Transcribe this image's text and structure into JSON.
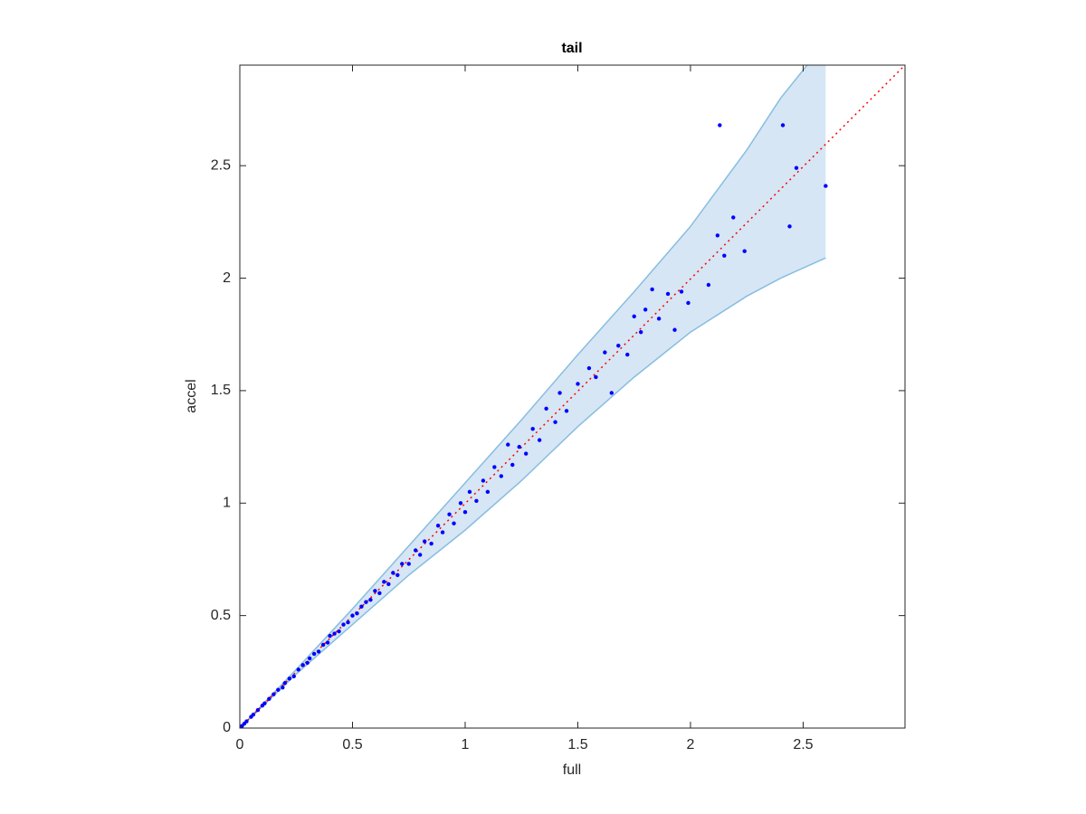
{
  "chart_data": {
    "type": "scatter",
    "title": "tail",
    "x_label": "full",
    "y_label": "accel",
    "xlim": [
      0,
      2.952
    ],
    "ylim": [
      0,
      2.947
    ],
    "xticks": [
      0,
      0.5,
      1,
      1.5,
      2,
      2.5
    ],
    "yticks": [
      0,
      0.5,
      1,
      1.5,
      2,
      2.5
    ],
    "box": true,
    "series": [
      {
        "color": "#0000ff",
        "x": [
          0.01,
          0.02,
          0.03,
          0.05,
          0.06,
          0.08,
          0.1,
          0.11,
          0.13,
          0.15,
          0.17,
          0.19,
          0.2,
          0.22,
          0.24,
          0.26,
          0.28,
          0.3,
          0.31,
          0.33,
          0.35,
          0.37,
          0.39,
          0.4,
          0.42,
          0.44,
          0.46,
          0.48,
          0.5,
          0.52,
          0.54,
          0.56,
          0.58,
          0.6,
          0.62,
          0.64,
          0.66,
          0.68,
          0.7,
          0.72,
          0.75,
          0.78,
          0.8,
          0.82,
          0.85,
          0.88,
          0.9,
          0.93,
          0.95,
          0.98,
          1.0,
          1.02,
          1.05,
          1.08,
          1.1,
          1.13,
          1.16,
          1.19,
          1.21,
          1.24,
          1.27,
          1.3,
          1.33,
          1.36,
          1.4,
          1.42,
          1.45,
          1.5,
          1.55,
          1.58,
          1.62,
          1.65,
          1.68,
          1.72,
          1.75,
          1.78,
          1.8,
          1.83,
          1.86,
          1.9,
          1.93,
          1.96,
          1.99,
          2.08,
          2.12,
          2.13,
          2.15,
          2.19,
          2.24,
          2.41,
          2.44,
          2.47,
          2.6
        ],
        "values": [
          0.01,
          0.02,
          0.03,
          0.05,
          0.06,
          0.08,
          0.1,
          0.11,
          0.13,
          0.15,
          0.17,
          0.18,
          0.2,
          0.22,
          0.23,
          0.26,
          0.28,
          0.29,
          0.31,
          0.33,
          0.34,
          0.37,
          0.38,
          0.41,
          0.42,
          0.43,
          0.46,
          0.47,
          0.5,
          0.51,
          0.54,
          0.56,
          0.57,
          0.61,
          0.6,
          0.65,
          0.64,
          0.69,
          0.68,
          0.73,
          0.73,
          0.79,
          0.77,
          0.83,
          0.82,
          0.9,
          0.87,
          0.95,
          0.91,
          1.0,
          0.96,
          1.05,
          1.01,
          1.1,
          1.05,
          1.16,
          1.12,
          1.26,
          1.17,
          1.25,
          1.22,
          1.33,
          1.28,
          1.42,
          1.36,
          1.49,
          1.41,
          1.53,
          1.6,
          1.56,
          1.67,
          1.49,
          1.7,
          1.66,
          1.83,
          1.76,
          1.86,
          1.95,
          1.82,
          1.93,
          1.77,
          1.94,
          1.89,
          1.97,
          2.19,
          2.68,
          2.1,
          2.27,
          2.12,
          2.68,
          2.23,
          2.49,
          2.41
        ]
      }
    ],
    "band": {
      "color": "#d6e6f4",
      "edge_color": "#88bde0",
      "x": [
        0,
        0.25,
        0.5,
        0.75,
        1,
        1.25,
        1.5,
        1.75,
        2,
        2.25,
        2.4,
        2.6
      ],
      "upper": [
        0,
        0.26,
        0.53,
        0.81,
        1.09,
        1.37,
        1.66,
        1.94,
        2.23,
        2.57,
        2.8,
        3.05
      ],
      "lower": [
        0,
        0.24,
        0.46,
        0.68,
        0.88,
        1.1,
        1.34,
        1.56,
        1.76,
        1.92,
        2.0,
        2.09
      ]
    },
    "reference_line": {
      "color": "#ff0000",
      "x": [
        0,
        2.952
      ],
      "y": [
        0,
        2.947
      ]
    }
  }
}
